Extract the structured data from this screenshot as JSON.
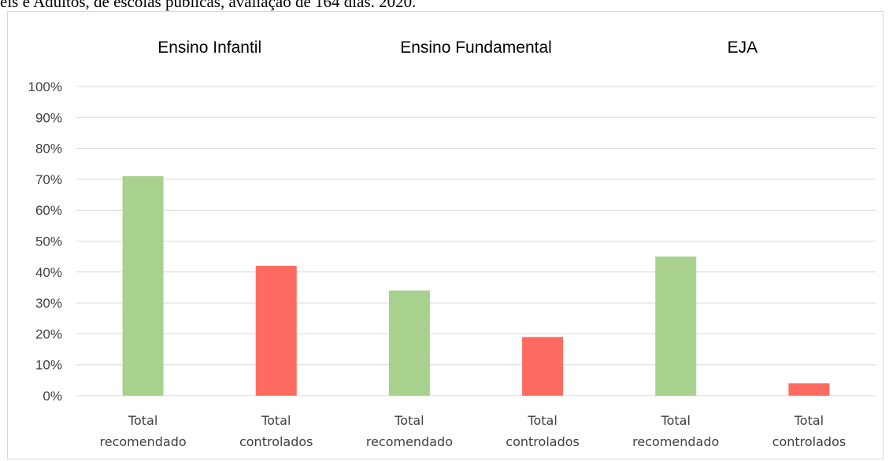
{
  "caption": "eis e Adultos, de escolas públicas, avaliação de 164 dias. 2020.",
  "chart_data": {
    "type": "bar",
    "groups": [
      "Ensino Infantil",
      "Ensino Fundamental",
      "EJA"
    ],
    "categories": [
      "Total recomendado",
      "Total controlados",
      "Total recomendado",
      "Total controlados",
      "Total recomendado",
      "Total controlados"
    ],
    "values": [
      71,
      42,
      34,
      19,
      45,
      4
    ],
    "colors": [
      "#a9d18e",
      "#ff6b61",
      "#a9d18e",
      "#ff6b61",
      "#a9d18e",
      "#ff6b61"
    ],
    "yticks": [
      "0%",
      "10%",
      "20%",
      "30%",
      "40%",
      "50%",
      "60%",
      "70%",
      "80%",
      "90%",
      "100%"
    ],
    "ylim": [
      0,
      100
    ],
    "grid": true
  }
}
